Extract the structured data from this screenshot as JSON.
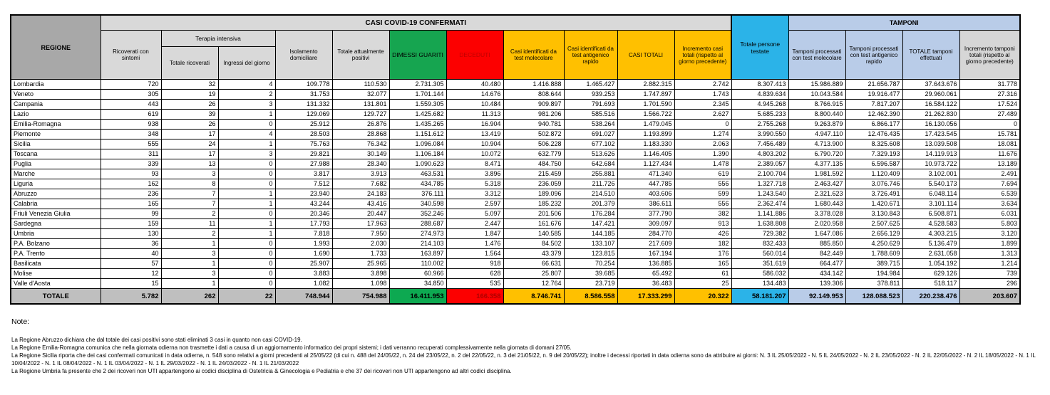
{
  "table": {
    "header": {
      "regione": "REGIONE",
      "casi_confermati": "CASI COVID-19 CONFERMATI",
      "tamponi_band": "TAMPONI",
      "totale_persone_testate": "Totale persone testate",
      "ricoverati_con_sintomi": "Ricoverati con sintomi",
      "terapia_intensiva": "Terapia intensiva",
      "totale_ricoverati": "Totale ricoverati",
      "ingressi_del_giorno": "Ingressi del giorno",
      "isolamento_domiciliare": "Isolamento domiciliare",
      "totale_attualmente_positivi": "Totale attualmente positivi",
      "dimessi_guariti": "DIMESSI GUARITI",
      "deceduti": "DECEDUTI",
      "casi_molecolare": "Casi identificati da test molecolare",
      "casi_antigenico": "Casi identificati da test antigenico rapido",
      "casi_totali": "CASI TOTALI",
      "incremento_casi": "Incremento casi totali (rispetto al giorno precedente)",
      "tamponi_molecolare": "Tamponi processati con test molecolare",
      "tamponi_antigenico": "Tamponi processati con test antigenico rapido",
      "totale_tamponi": "TOTALE tamponi effettuati",
      "incremento_tamponi": "Incremento tamponi totali (rispetto al giorno precedente)"
    },
    "rows": [
      {
        "regione": "Lombardia",
        "values": [
          "720",
          "32",
          "4",
          "109.778",
          "110.530",
          "2.731.305",
          "40.480",
          "1.416.888",
          "1.465.427",
          "2.882.315",
          "2.742",
          "8.307.413",
          "15.986.889",
          "21.656.787",
          "37.643.676",
          "31.778"
        ]
      },
      {
        "regione": "Veneto",
        "values": [
          "305",
          "19",
          "2",
          "31.753",
          "32.077",
          "1.701.144",
          "14.676",
          "808.644",
          "939.253",
          "1.747.897",
          "1.743",
          "4.839.634",
          "10.043.584",
          "19.916.477",
          "29.960.061",
          "27.316"
        ]
      },
      {
        "regione": "Campania",
        "values": [
          "443",
          "26",
          "3",
          "131.332",
          "131.801",
          "1.559.305",
          "10.484",
          "909.897",
          "791.693",
          "1.701.590",
          "2.345",
          "4.945.268",
          "8.766.915",
          "7.817.207",
          "16.584.122",
          "17.524"
        ]
      },
      {
        "regione": "Lazio",
        "values": [
          "619",
          "39",
          "1",
          "129.069",
          "129.727",
          "1.425.682",
          "11.313",
          "981.206",
          "585.516",
          "1.566.722",
          "2.627",
          "5.685.233",
          "8.800.440",
          "12.462.390",
          "21.262.830",
          "27.489"
        ]
      },
      {
        "regione": "Emilia-Romagna",
        "values": [
          "938",
          "26",
          "0",
          "25.912",
          "26.876",
          "1.435.265",
          "16.904",
          "940.781",
          "538.264",
          "1.479.045",
          "0",
          "2.755.268",
          "9.263.879",
          "6.866.177",
          "16.130.056",
          "0"
        ]
      },
      {
        "regione": "Piemonte",
        "values": [
          "348",
          "17",
          "4",
          "28.503",
          "28.868",
          "1.151.612",
          "13.419",
          "502.872",
          "691.027",
          "1.193.899",
          "1.274",
          "3.990.550",
          "4.947.110",
          "12.476.435",
          "17.423.545",
          "15.781"
        ]
      },
      {
        "regione": "Sicilia",
        "values": [
          "555",
          "24",
          "1",
          "75.763",
          "76.342",
          "1.096.084",
          "10.904",
          "506.228",
          "677.102",
          "1.183.330",
          "2.063",
          "7.456.489",
          "4.713.900",
          "8.325.608",
          "13.039.508",
          "18.081"
        ]
      },
      {
        "regione": "Toscana",
        "values": [
          "311",
          "17",
          "3",
          "29.821",
          "30.149",
          "1.106.184",
          "10.072",
          "632.779",
          "513.626",
          "1.146.405",
          "1.390",
          "4.803.202",
          "6.790.720",
          "7.329.193",
          "14.119.913",
          "11.676"
        ]
      },
      {
        "regione": "Puglia",
        "values": [
          "339",
          "13",
          "0",
          "27.988",
          "28.340",
          "1.090.623",
          "8.471",
          "484.750",
          "642.684",
          "1.127.434",
          "1.478",
          "2.389.057",
          "4.377.135",
          "6.596.587",
          "10.973.722",
          "13.189"
        ]
      },
      {
        "regione": "Marche",
        "values": [
          "93",
          "3",
          "0",
          "3.817",
          "3.913",
          "463.531",
          "3.896",
          "215.459",
          "255.881",
          "471.340",
          "619",
          "2.100.704",
          "1.981.592",
          "1.120.409",
          "3.102.001",
          "2.491"
        ]
      },
      {
        "regione": "Liguria",
        "values": [
          "162",
          "8",
          "0",
          "7.512",
          "7.682",
          "434.785",
          "5.318",
          "236.059",
          "211.726",
          "447.785",
          "556",
          "1.327.718",
          "2.463.427",
          "3.076.746",
          "5.540.173",
          "7.694"
        ]
      },
      {
        "regione": "Abruzzo",
        "values": [
          "236",
          "7",
          "1",
          "23.940",
          "24.183",
          "376.111",
          "3.312",
          "189.096",
          "214.510",
          "403.606",
          "599",
          "1.243.540",
          "2.321.623",
          "3.726.491",
          "6.048.114",
          "6.539"
        ]
      },
      {
        "regione": "Calabria",
        "values": [
          "165",
          "7",
          "1",
          "43.244",
          "43.416",
          "340.598",
          "2.597",
          "185.232",
          "201.379",
          "386.611",
          "556",
          "2.362.474",
          "1.680.443",
          "1.420.671",
          "3.101.114",
          "3.634"
        ]
      },
      {
        "regione": "Friuli Venezia Giulia",
        "values": [
          "99",
          "2",
          "0",
          "20.346",
          "20.447",
          "352.246",
          "5.097",
          "201.506",
          "176.284",
          "377.790",
          "382",
          "1.141.886",
          "3.378.028",
          "3.130.843",
          "6.508.871",
          "6.031"
        ]
      },
      {
        "regione": "Sardegna",
        "values": [
          "159",
          "11",
          "1",
          "17.793",
          "17.963",
          "288.687",
          "2.447",
          "161.676",
          "147.421",
          "309.097",
          "913",
          "1.638.808",
          "2.020.958",
          "2.507.625",
          "4.528.583",
          "5.803"
        ]
      },
      {
        "regione": "Umbria",
        "values": [
          "130",
          "2",
          "1",
          "7.818",
          "7.950",
          "274.973",
          "1.847",
          "140.585",
          "144.185",
          "284.770",
          "426",
          "729.382",
          "1.647.086",
          "2.656.129",
          "4.303.215",
          "3.120"
        ]
      },
      {
        "regione": "P.A. Bolzano",
        "values": [
          "36",
          "1",
          "0",
          "1.993",
          "2.030",
          "214.103",
          "1.476",
          "84.502",
          "133.107",
          "217.609",
          "182",
          "832.433",
          "885.850",
          "4.250.629",
          "5.136.479",
          "1.899"
        ]
      },
      {
        "regione": "P.A. Trento",
        "values": [
          "40",
          "3",
          "0",
          "1.690",
          "1.733",
          "163.897",
          "1.564",
          "43.379",
          "123.815",
          "167.194",
          "176",
          "560.014",
          "842.449",
          "1.788.609",
          "2.631.058",
          "1.313"
        ]
      },
      {
        "regione": "Basilicata",
        "values": [
          "57",
          "1",
          "0",
          "25.907",
          "25.965",
          "110.002",
          "918",
          "66.631",
          "70.254",
          "136.885",
          "165",
          "351.619",
          "664.477",
          "389.715",
          "1.054.192",
          "1.214"
        ]
      },
      {
        "regione": "Molise",
        "values": [
          "12",
          "3",
          "0",
          "3.883",
          "3.898",
          "60.966",
          "628",
          "25.807",
          "39.685",
          "65.492",
          "61",
          "586.032",
          "434.142",
          "194.984",
          "629.126",
          "739"
        ]
      },
      {
        "regione": "Valle d'Aosta",
        "values": [
          "15",
          "1",
          "0",
          "1.082",
          "1.098",
          "34.850",
          "535",
          "12.764",
          "23.719",
          "36.483",
          "25",
          "134.483",
          "139.306",
          "378.811",
          "518.117",
          "296"
        ]
      }
    ],
    "total_row": {
      "label": "TOTALE",
      "values": [
        "5.782",
        "262",
        "22",
        "748.944",
        "754.988",
        "16.411.953",
        "166.358",
        "8.746.741",
        "8.586.558",
        "17.333.299",
        "20.322",
        "58.181.207",
        "92.149.953",
        "128.088.523",
        "220.238.476",
        "203.607"
      ]
    }
  },
  "notes": {
    "title": "Note:",
    "lines": [
      "La Regione Abruzzo dichiara che dal totale dei casi positivi sono stati eliminati 3 casi in quanto non casi COVID-19.",
      "La Regione Emilia-Romagna comunica che nella giornata odierna non trasmette i dati a causa di un aggiornamento informatico dei propri sistemi; i dati verranno recuperati complessivamente nella giornata di domani 27/05.",
      "La Regione Sicilia riporta che dei casi confermati comunicati in data odierna, n. 548 sono relativi a giorni precedenti al 25/05/22 (di cui n. 488 del 24/05/22, n. 24 del 23/05/22, n. 2 del 22/05/22, n. 3 del 21/05/22, n. 9 del 20/05/22); inoltre i decessi riportati in data odierna sono da attribuire ai giorni: N. 3 IL 25/05/2022 - N. 5 IL 24/05/2022 - N. 2 IL 23/05/2022 - N. 2 IL 22/05/2022 - N. 2 IL 18/05/2022 - N. 1 IL 10/04/2022 - N. 1 IL 08/04/2022 - N. 1 IL 03/04/2022 - N. 1 IL 29/03/2022 - N. 1 IL 24/03/2022 - N. 1 IL 21/03/2022",
      "La Regione Umbria fa presente che 2 dei ricoveri non UTI appartengono ai codici disciplina di Ostetricia & Ginecologia e Pediatria e che 37 dei ricoveri non UTI appartengono ad altri codici disciplina."
    ]
  },
  "colors": {
    "header_dark_gray": "#A8A8A8",
    "header_light_gray": "#D9D9D9",
    "green": "#16A550",
    "red": "#FC0000",
    "red_text": "#C00000",
    "orange": "#FFC000",
    "cyan": "#2BB3E8",
    "light_blue": "#B9CCE8",
    "total_gray": "#BFBFBF"
  }
}
